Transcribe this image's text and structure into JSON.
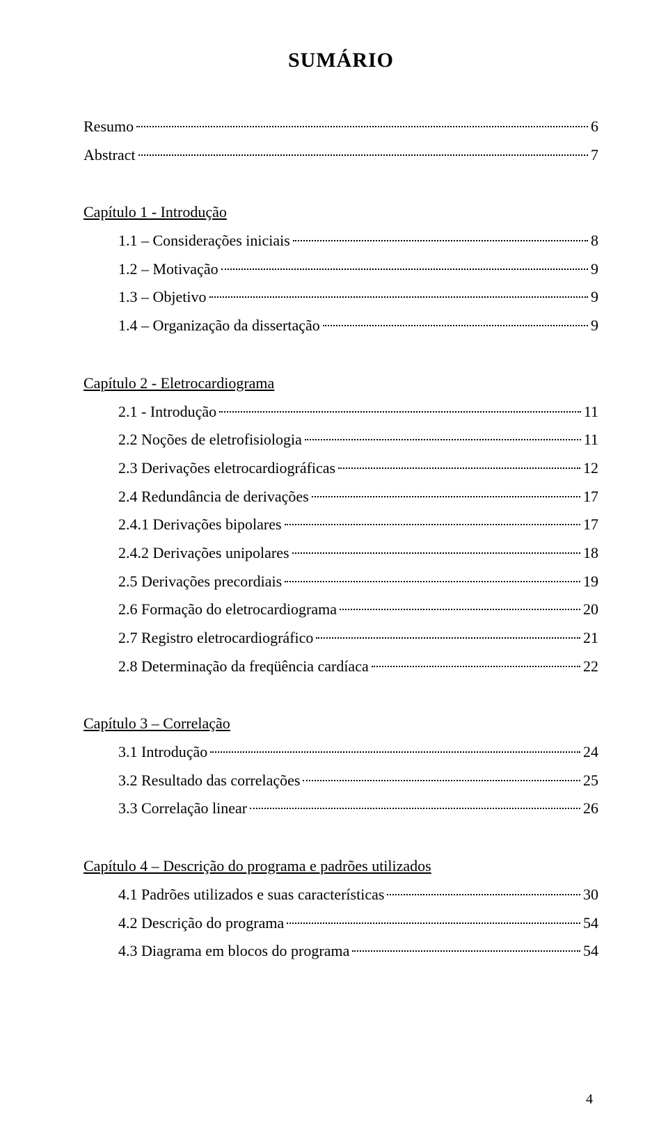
{
  "title": "SUMÁRIO",
  "top_entries": [
    {
      "label": "Resumo",
      "page": "6"
    },
    {
      "label": "Abstract",
      "page": "7"
    }
  ],
  "chapters": [
    {
      "heading": "Capítulo 1 - Introdução",
      "entries": [
        {
          "label": "1.1 – Considerações iniciais",
          "page": "8"
        },
        {
          "label": "1.2 – Motivação",
          "page": "9"
        },
        {
          "label": "1.3 – Objetivo",
          "page": "9"
        },
        {
          "label": "1.4 – Organização da dissertação",
          "page": "9"
        }
      ]
    },
    {
      "heading": "Capítulo 2 - Eletrocardiograma",
      "entries": [
        {
          "label": "2.1 - Introdução",
          "page": "11"
        },
        {
          "label": "2.2 Noções de eletrofisiologia",
          "page": "11"
        },
        {
          "label": "2.3 Derivações eletrocardiográficas",
          "page": "12"
        },
        {
          "label": "2.4 Redundância de derivações",
          "page": "17"
        },
        {
          "label": "2.4.1 Derivações bipolares",
          "page": "17"
        },
        {
          "label": "2.4.2 Derivações unipolares",
          "page": "18"
        },
        {
          "label": "2.5 Derivações precordiais",
          "page": "19"
        },
        {
          "label": "2.6 Formação do eletrocardiograma",
          "page": "20"
        },
        {
          "label": "2.7 Registro eletrocardiográfico",
          "page": "21"
        },
        {
          "label": "2.8 Determinação da freqüência cardíaca",
          "page": "22"
        }
      ]
    },
    {
      "heading": "Capítulo 3 – Correlação",
      "entries": [
        {
          "label": "3.1 Introdução",
          "page": "24"
        },
        {
          "label": "3.2 Resultado das correlações",
          "page": "25"
        },
        {
          "label": "3.3 Correlação linear",
          "page": "26"
        }
      ]
    },
    {
      "heading": "Capítulo 4 – Descrição do programa e padrões utilizados",
      "entries": [
        {
          "label": "4.1 Padrões utilizados e suas características",
          "page": "30"
        },
        {
          "label": "4.2 Descrição do programa",
          "page": "54"
        },
        {
          "label": "4.3 Diagrama em blocos do programa",
          "page": "54"
        }
      ]
    }
  ],
  "page_number": "4"
}
